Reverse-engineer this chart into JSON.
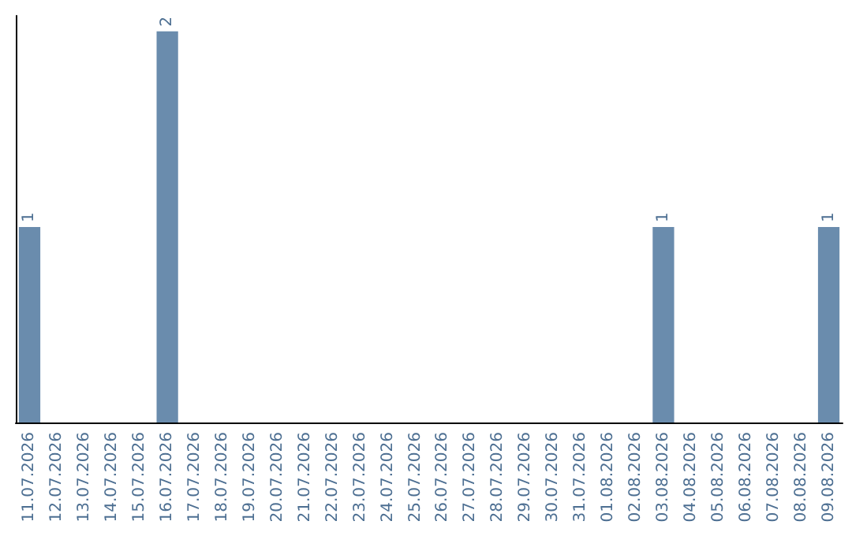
{
  "chart_data": {
    "type": "bar",
    "categories": [
      "11.07.2026",
      "12.07.2026",
      "13.07.2026",
      "14.07.2026",
      "15.07.2026",
      "16.07.2026",
      "17.07.2026",
      "18.07.2026",
      "19.07.2026",
      "20.07.2026",
      "21.07.2026",
      "22.07.2026",
      "23.07.2026",
      "24.07.2026",
      "25.07.2026",
      "26.07.2026",
      "27.07.2026",
      "28.07.2026",
      "29.07.2026",
      "30.07.2026",
      "31.07.2026",
      "01.08.2026",
      "02.08.2026",
      "03.08.2026",
      "04.08.2026",
      "05.08.2026",
      "06.08.2026",
      "07.08.2026",
      "08.08.2026",
      "09.08.2026"
    ],
    "values": [
      1,
      0,
      0,
      0,
      0,
      2,
      0,
      0,
      0,
      0,
      0,
      0,
      0,
      0,
      0,
      0,
      0,
      0,
      0,
      0,
      0,
      0,
      0,
      1,
      0,
      0,
      0,
      0,
      0,
      1
    ],
    "value_labels": [
      "1",
      null,
      null,
      null,
      null,
      "2",
      null,
      null,
      null,
      null,
      null,
      null,
      null,
      null,
      null,
      null,
      null,
      null,
      null,
      null,
      null,
      null,
      null,
      "1",
      null,
      null,
      null,
      null,
      null,
      "1"
    ],
    "color": "#6a8cad",
    "grid": false
  }
}
